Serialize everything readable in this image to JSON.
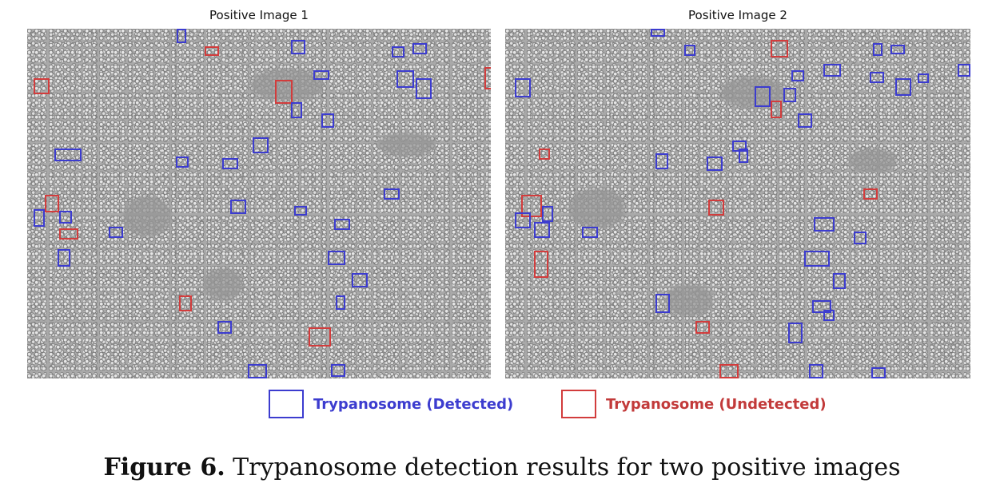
{
  "panels": [
    {
      "title": "Positive Image 1"
    },
    {
      "title": "Positive Image 2"
    }
  ],
  "legend": {
    "detected": {
      "label": "Trypanosome (Detected)",
      "color": "#3c3ccf"
    },
    "undetected": {
      "label": "Trypanosome (Undetected)",
      "color": "#d23c3c"
    }
  },
  "caption": {
    "prefix": "Figure 6.",
    "text": " Trypanosome detection results for two positive images"
  }
}
